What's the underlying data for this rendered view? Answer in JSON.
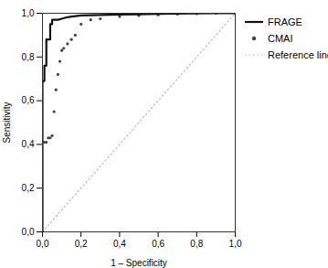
{
  "chart_data": {
    "type": "line",
    "title": "",
    "xlabel": "1 – Specificity",
    "ylabel": "Sensitivity",
    "xlim": [
      0,
      1
    ],
    "ylim": [
      0,
      1
    ],
    "xticks": [
      {
        "value": 0.0,
        "label": "0,0"
      },
      {
        "value": 0.2,
        "label": "0,2"
      },
      {
        "value": 0.4,
        "label": "0,4"
      },
      {
        "value": 0.6,
        "label": "0,6"
      },
      {
        "value": 0.8,
        "label": "0,8"
      },
      {
        "value": 1.0,
        "label": "1,0"
      }
    ],
    "yticks": [
      {
        "value": 0.0,
        "label": "0,0"
      },
      {
        "value": 0.2,
        "label": "0,2"
      },
      {
        "value": 0.4,
        "label": "0,4"
      },
      {
        "value": 0.6,
        "label": "0,6"
      },
      {
        "value": 0.8,
        "label": "0,8"
      },
      {
        "value": 1.0,
        "label": "1,0"
      }
    ],
    "grid": false,
    "legend": "right",
    "series": [
      {
        "name": "FRAGE",
        "type": "line",
        "line_style": "solid",
        "color": "#111111",
        "x": [
          0.0,
          0.0,
          0.0,
          0.01,
          0.01,
          0.02,
          0.02,
          0.04,
          0.04,
          0.05,
          0.05,
          0.07,
          0.08,
          0.1,
          0.12,
          0.15,
          0.2,
          0.3,
          0.4,
          0.5,
          0.6,
          0.7,
          0.8,
          0.9,
          1.0
        ],
        "values": [
          0.0,
          0.41,
          0.69,
          0.69,
          0.76,
          0.76,
          0.88,
          0.88,
          0.95,
          0.95,
          0.97,
          0.97,
          0.97,
          0.975,
          0.98,
          0.985,
          0.99,
          0.992,
          0.994,
          0.995,
          0.997,
          0.998,
          0.999,
          1.0,
          1.0
        ]
      },
      {
        "name": "CMAI",
        "type": "scatter",
        "marker": "dot",
        "color": "#444444",
        "x": [
          0.0,
          0.01,
          0.02,
          0.03,
          0.04,
          0.05,
          0.06,
          0.07,
          0.08,
          0.09,
          0.1,
          0.11,
          0.13,
          0.15,
          0.17,
          0.2,
          0.25,
          0.3,
          0.4,
          0.5,
          0.6,
          0.7,
          0.8,
          0.9,
          1.0
        ],
        "values": [
          0.0,
          0.41,
          0.41,
          0.43,
          0.43,
          0.44,
          0.55,
          0.65,
          0.72,
          0.78,
          0.83,
          0.84,
          0.86,
          0.88,
          0.9,
          0.95,
          0.97,
          0.975,
          0.985,
          0.99,
          0.993,
          0.996,
          0.998,
          1.0,
          1.0
        ]
      },
      {
        "name": "Reference line",
        "type": "line",
        "line_style": "dotted",
        "color": "#bbbbbb",
        "x": [
          0.0,
          1.0
        ],
        "values": [
          0.0,
          1.0
        ]
      }
    ]
  }
}
